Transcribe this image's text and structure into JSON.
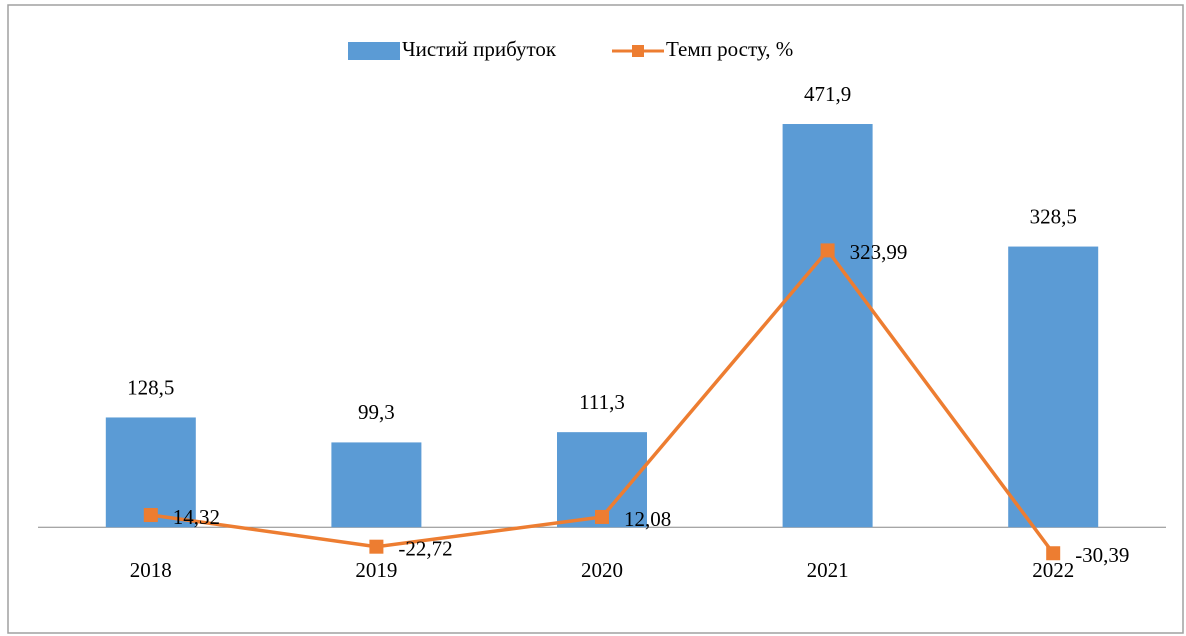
{
  "chart_data": {
    "type": "bar_line",
    "categories": [
      "2018",
      "2019",
      "2020",
      "2021",
      "2022"
    ],
    "series": [
      {
        "name": "Чистий прибуток",
        "type": "bar",
        "color": "#5b9bd5",
        "values": [
          128.5,
          99.3,
          111.3,
          471.9,
          328.5
        ],
        "value_labels": [
          "128,5",
          "99,3",
          "111,3",
          "471,9",
          "328,5"
        ]
      },
      {
        "name": "Темп росту, %",
        "type": "line",
        "color": "#ed7d31",
        "values": [
          14.32,
          -22.72,
          12.08,
          323.99,
          -30.39
        ],
        "value_labels": [
          "14,32",
          "-22,72",
          "12,08",
          "323,99",
          "-30,39"
        ]
      }
    ],
    "ylim": [
      -50,
      500
    ],
    "legend": "top"
  }
}
